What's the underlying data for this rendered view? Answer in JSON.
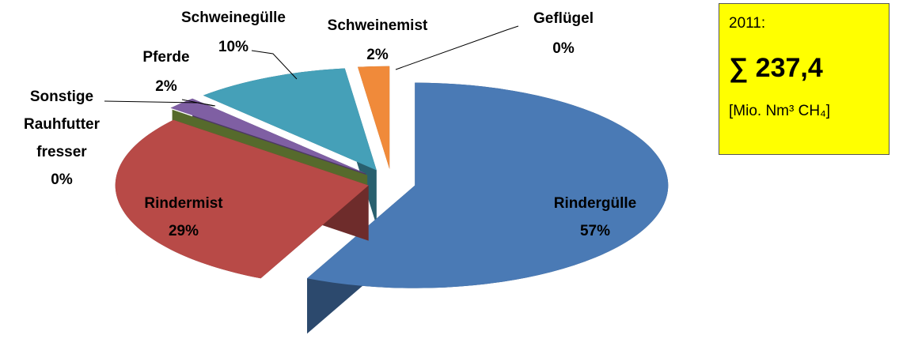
{
  "chart_data": {
    "type": "pie",
    "categories": [
      "Rindergülle",
      "Rindermist",
      "Sonstige Rauhfutter fresser",
      "Pferde",
      "Schweinegülle",
      "Schweinemist",
      "Geflügel"
    ],
    "values": [
      57,
      29,
      0,
      2,
      10,
      2,
      0
    ],
    "value_labels": [
      "57%",
      "29%",
      "0%",
      "2%",
      "10%",
      "2%",
      "0%"
    ],
    "colors": [
      "#4a7ab5",
      "#b84a47",
      "#8fb04a",
      "#7f5fa3",
      "#45a0b8",
      "#f08a3a",
      "#9abb59"
    ],
    "info_box": [
      "2011:",
      "∑ 237,4",
      "[Mio. Nm³ CH₄]"
    ]
  }
}
